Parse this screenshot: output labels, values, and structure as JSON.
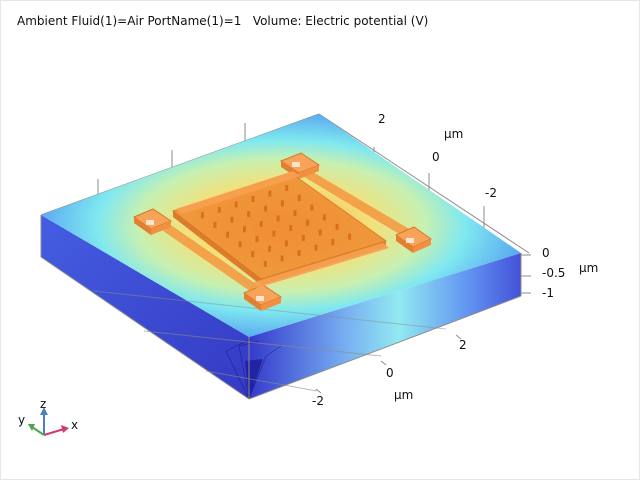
{
  "plot": {
    "title": "Ambient Fluid(1)=Air PortName(1)=1   Volume: Electric potential (V)"
  },
  "axes": {
    "x": {
      "ticks": [
        "2",
        "0",
        "-2"
      ],
      "unit": "μm"
    },
    "y": {
      "ticks": [
        "2",
        "0",
        "-2"
      ],
      "unit": "μm"
    },
    "z": {
      "ticks": [
        "0",
        "-0.5",
        "-1"
      ],
      "unit": "μm"
    }
  },
  "triad": {
    "x": "x",
    "y": "y",
    "z": "z"
  },
  "colors": {
    "potential_high": "#f0a040",
    "potential_mid": "#f5f07a",
    "potential_low_cyan": "#7fe8f0",
    "potential_low_blue": "#3850e0",
    "device": "#f08a30",
    "axis_x": "#d23a6e",
    "axis_y": "#4aa84a",
    "axis_z": "#4a7fc0"
  }
}
